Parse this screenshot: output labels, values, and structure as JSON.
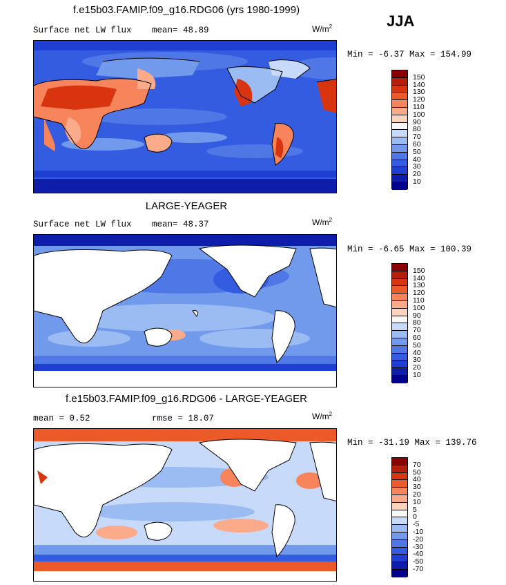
{
  "season": "JJA",
  "units": "W/m",
  "units_sup": "2",
  "panels": [
    {
      "title": "f.e15b03.FAMIP.f09_g16.RDG06 (yrs 1980-1999)",
      "left_label": "Surface net LW flux",
      "mid_label": "mean=  48.89",
      "stats": "Min =  -6.37 Max = 154.99"
    },
    {
      "title": "LARGE-YEAGER",
      "left_label": "Surface net LW flux",
      "mid_label": "mean=  48.37",
      "stats": "Min =  -6.65 Max = 100.39"
    },
    {
      "title": "f.e15b03.FAMIP.f09_g16.RDG06 - LARGE-YEAGER",
      "left_label": "mean =   0.52",
      "mid_label": "rmse =  18.07",
      "stats": "Min = -31.19 Max = 139.76"
    }
  ],
  "colorbars": {
    "abs": {
      "levels": [
        "150",
        "140",
        "130",
        "120",
        "110",
        "100",
        "90",
        "80",
        "70",
        "60",
        "50",
        "40",
        "30",
        "20",
        "10"
      ],
      "colors": [
        "#8b0000",
        "#b41e0a",
        "#d7340f",
        "#ec5a2a",
        "#f7845a",
        "#fbab8a",
        "#fdd3bd",
        "#f7f7f7",
        "#c7dafa",
        "#9bbcf3",
        "#7199ec",
        "#4f78e6",
        "#335ce0",
        "#1e3fd2",
        "#0f1eaa",
        "#00008c"
      ]
    },
    "diff": {
      "levels": [
        "70",
        "50",
        "40",
        "30",
        "20",
        "10",
        "5",
        "0",
        "-5",
        "-10",
        "-20",
        "-30",
        "-40",
        "-50",
        "-70"
      ],
      "colors": [
        "#8b0000",
        "#b41e0a",
        "#d7340f",
        "#ec5a2a",
        "#f7845a",
        "#fbab8a",
        "#fdd3bd",
        "#f7f7f7",
        "#c7dafa",
        "#9bbcf3",
        "#7199ec",
        "#4f78e6",
        "#335ce0",
        "#1e3fd2",
        "#0f1eaa",
        "#00008c"
      ]
    }
  },
  "chart_data": [
    {
      "type": "heatmap",
      "title": "f.e15b03.FAMIP.f09_g16.RDG06 (yrs 1980-1999)",
      "variable": "Surface net LW flux",
      "season": "JJA",
      "mean": 48.89,
      "min": -6.37,
      "max": 154.99,
      "colorbar_levels": [
        150,
        140,
        130,
        120,
        110,
        100,
        90,
        80,
        70,
        60,
        50,
        40,
        30,
        20,
        10
      ]
    },
    {
      "type": "heatmap",
      "title": "LARGE-YEAGER",
      "variable": "Surface net LW flux",
      "season": "JJA",
      "mean": 48.37,
      "min": -6.65,
      "max": 100.39,
      "colorbar_levels": [
        150,
        140,
        130,
        120,
        110,
        100,
        90,
        80,
        70,
        60,
        50,
        40,
        30,
        20,
        10
      ]
    },
    {
      "type": "heatmap",
      "title": "f.e15b03.FAMIP.f09_g16.RDG06 - LARGE-YEAGER",
      "season": "JJA",
      "mean": 0.52,
      "rmse": 18.07,
      "min": -31.19,
      "max": 139.76,
      "colorbar_levels": [
        70,
        50,
        40,
        30,
        20,
        10,
        5,
        0,
        -5,
        -10,
        -20,
        -30,
        -40,
        -50,
        -70
      ]
    }
  ]
}
